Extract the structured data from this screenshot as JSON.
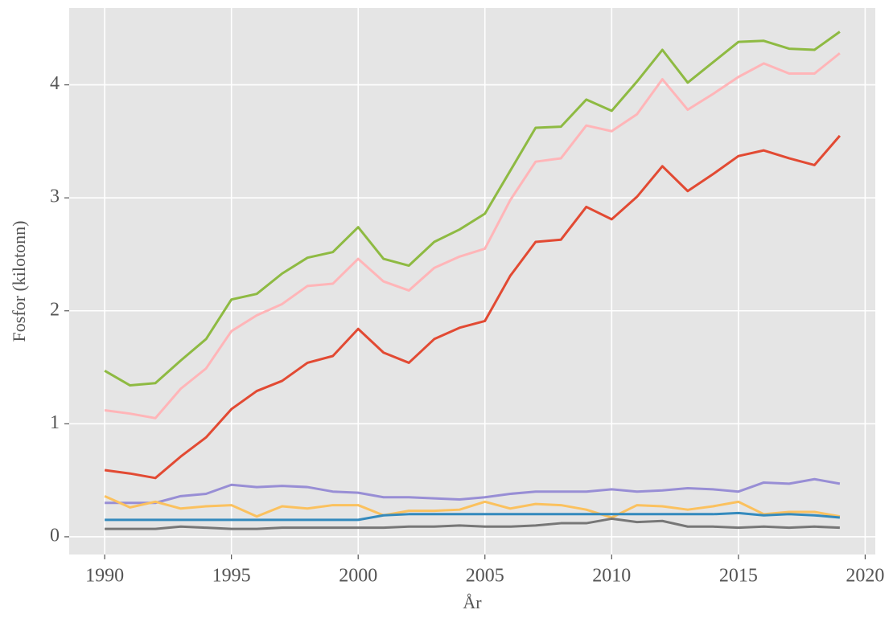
{
  "chart_data": {
    "type": "line",
    "xlabel": "År",
    "ylabel": "Fosfor (kilotonn)",
    "x": [
      1990,
      1991,
      1992,
      1993,
      1994,
      1995,
      1996,
      1997,
      1998,
      1999,
      2000,
      2001,
      2002,
      2003,
      2004,
      2005,
      2006,
      2007,
      2008,
      2009,
      2010,
      2011,
      2012,
      2013,
      2014,
      2015,
      2016,
      2017,
      2018,
      2019
    ],
    "series": [
      {
        "color": "#8EBA42",
        "values": [
          1.47,
          1.34,
          1.36,
          1.56,
          1.75,
          2.1,
          2.15,
          2.33,
          2.47,
          2.52,
          2.74,
          2.46,
          2.4,
          2.61,
          2.72,
          2.86,
          3.24,
          3.62,
          3.63,
          3.87,
          3.77,
          4.03,
          4.31,
          4.02,
          4.2,
          4.38,
          4.39,
          4.32,
          4.31,
          4.47
        ]
      },
      {
        "color": "#FFB5B8",
        "values": [
          1.12,
          1.09,
          1.05,
          1.31,
          1.49,
          1.82,
          1.96,
          2.06,
          2.22,
          2.24,
          2.46,
          2.26,
          2.18,
          2.38,
          2.48,
          2.55,
          2.98,
          3.32,
          3.35,
          3.64,
          3.59,
          3.74,
          4.05,
          3.78,
          3.92,
          4.07,
          4.19,
          4.1,
          4.1,
          4.28
        ]
      },
      {
        "color": "#E24A33",
        "values": [
          0.59,
          0.56,
          0.52,
          0.71,
          0.88,
          1.13,
          1.29,
          1.38,
          1.54,
          1.6,
          1.84,
          1.63,
          1.54,
          1.75,
          1.85,
          1.91,
          2.31,
          2.61,
          2.63,
          2.92,
          2.81,
          3.01,
          3.28,
          3.06,
          3.21,
          3.37,
          3.42,
          3.35,
          3.29,
          3.55
        ]
      },
      {
        "color": "#988ED5",
        "values": [
          0.3,
          0.3,
          0.3,
          0.36,
          0.38,
          0.46,
          0.44,
          0.45,
          0.44,
          0.4,
          0.39,
          0.35,
          0.35,
          0.34,
          0.33,
          0.35,
          0.38,
          0.4,
          0.4,
          0.4,
          0.42,
          0.4,
          0.41,
          0.43,
          0.42,
          0.4,
          0.48,
          0.47,
          0.51,
          0.47
        ]
      },
      {
        "color": "#FBC15E",
        "values": [
          0.36,
          0.26,
          0.31,
          0.25,
          0.27,
          0.28,
          0.18,
          0.27,
          0.25,
          0.28,
          0.28,
          0.19,
          0.23,
          0.23,
          0.24,
          0.31,
          0.25,
          0.29,
          0.28,
          0.24,
          0.17,
          0.28,
          0.27,
          0.24,
          0.27,
          0.31,
          0.2,
          0.22,
          0.22,
          0.18
        ]
      },
      {
        "color": "#348ABD",
        "values": [
          0.15,
          0.15,
          0.15,
          0.15,
          0.15,
          0.15,
          0.15,
          0.15,
          0.15,
          0.15,
          0.15,
          0.19,
          0.2,
          0.2,
          0.2,
          0.2,
          0.2,
          0.2,
          0.2,
          0.2,
          0.2,
          0.2,
          0.2,
          0.2,
          0.2,
          0.21,
          0.19,
          0.2,
          0.19,
          0.17
        ]
      },
      {
        "color": "#777777",
        "values": [
          0.07,
          0.07,
          0.07,
          0.09,
          0.08,
          0.07,
          0.07,
          0.08,
          0.08,
          0.08,
          0.08,
          0.08,
          0.09,
          0.09,
          0.1,
          0.09,
          0.09,
          0.1,
          0.12,
          0.12,
          0.16,
          0.13,
          0.14,
          0.09,
          0.09,
          0.08,
          0.09,
          0.08,
          0.09,
          0.08
        ]
      }
    ],
    "xlim": [
      1988.6,
      2020.4
    ],
    "xticks": [
      1990,
      1995,
      2000,
      2005,
      2010,
      2015,
      2020
    ],
    "ylim": [
      -0.157,
      4.68
    ],
    "yticks": [
      0,
      1,
      2,
      3,
      4
    ],
    "grid": true
  }
}
